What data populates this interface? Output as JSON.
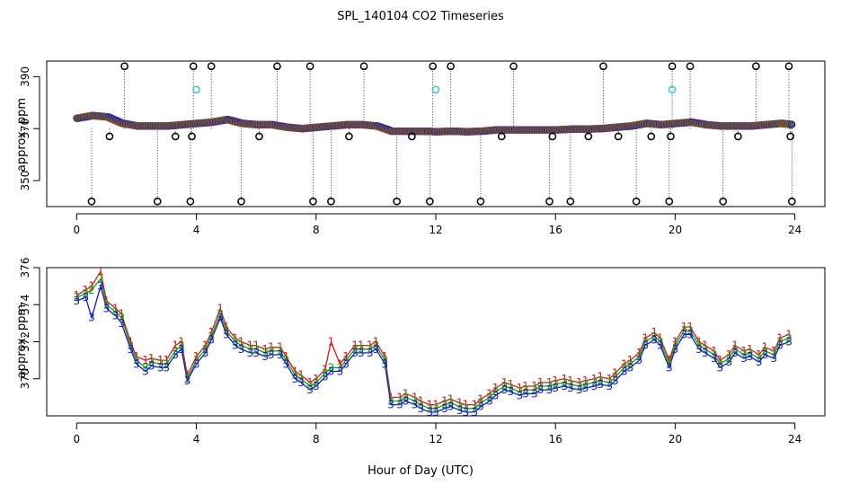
{
  "title": "SPL_140104  CO2 Timeseries",
  "xlabel": "Hour of Day (UTC)",
  "colors": {
    "black": "#000000",
    "red": "#e8141c",
    "green": "#00b400",
    "blue": "#1414e6",
    "cyan": "#22cccc",
    "magenta": "#c21ec2"
  },
  "chart_data": [
    {
      "type": "scatter",
      "name": "top-panel",
      "ylabel": "approx. ppm",
      "xlim": [
        -1,
        25
      ],
      "ylim": [
        340,
        396
      ],
      "x_ticks": [
        0,
        4,
        8,
        12,
        16,
        20,
        24
      ],
      "y_ticks": [
        350,
        370,
        390
      ],
      "main_series": {
        "x": [
          0.0,
          0.5,
          1.0,
          1.5,
          2.0,
          2.5,
          3.0,
          3.5,
          4.0,
          4.5,
          5.0,
          5.5,
          6.0,
          6.5,
          7.0,
          7.5,
          8.0,
          8.5,
          9.0,
          9.5,
          10.0,
          10.5,
          11.0,
          11.5,
          12.0,
          12.5,
          13.0,
          13.5,
          14.0,
          14.5,
          15.0,
          15.5,
          16.0,
          16.5,
          17.0,
          17.5,
          18.0,
          18.5,
          19.0,
          19.5,
          20.0,
          20.5,
          21.0,
          21.5,
          22.0,
          22.5,
          23.0,
          23.5,
          23.9
        ],
        "y": [
          374.0,
          375.0,
          374.5,
          372.0,
          371.0,
          371.0,
          371.0,
          371.5,
          372.0,
          372.5,
          373.5,
          372.0,
          371.5,
          371.5,
          370.5,
          370.0,
          370.5,
          371.0,
          371.5,
          371.5,
          371.0,
          369.0,
          369.0,
          369.0,
          368.8,
          369.0,
          368.8,
          369.0,
          369.5,
          369.5,
          369.5,
          369.5,
          369.5,
          369.8,
          369.8,
          370.0,
          370.5,
          371.0,
          372.0,
          371.5,
          372.0,
          372.5,
          371.5,
          371.0,
          371.0,
          371.0,
          371.5,
          372.0,
          371.5
        ]
      },
      "flagged_points": {
        "x": [
          0.5,
          1.1,
          1.6,
          2.7,
          3.3,
          3.8,
          3.85,
          3.9,
          4.5,
          5.5,
          6.1,
          6.7,
          7.8,
          7.9,
          8.5,
          9.1,
          9.6,
          10.7,
          11.2,
          11.8,
          11.9,
          12.5,
          13.5,
          14.2,
          14.6,
          15.8,
          15.9,
          16.5,
          17.1,
          17.6,
          18.1,
          18.7,
          19.2,
          19.8,
          19.85,
          19.9,
          20.5,
          21.6,
          22.1,
          22.7,
          23.8,
          23.85,
          23.9
        ],
        "y": [
          342,
          367,
          394,
          342,
          367,
          342,
          367,
          394,
          394,
          342,
          367,
          394,
          394,
          342,
          342,
          367,
          394,
          342,
          367,
          342,
          394,
          394,
          342,
          367,
          394,
          342,
          367,
          342,
          367,
          394,
          367,
          342,
          367,
          342,
          367,
          394,
          394,
          342,
          367,
          394,
          394,
          367,
          342
        ]
      },
      "cyan_points": {
        "x": [
          4.0,
          12.0,
          19.9
        ],
        "y": [
          385,
          385,
          385
        ]
      }
    },
    {
      "type": "line",
      "name": "bottom-panel",
      "ylabel": "approx. ppm",
      "xlim": [
        -1,
        25
      ],
      "ylim": [
        368,
        376
      ],
      "x_ticks": [
        0,
        4,
        8,
        12,
        16,
        20,
        24
      ],
      "y_ticks": [
        370,
        372,
        374,
        376
      ],
      "x": [
        0.0,
        0.3,
        0.5,
        0.8,
        1.0,
        1.3,
        1.5,
        1.8,
        2.0,
        2.3,
        2.5,
        2.8,
        3.0,
        3.3,
        3.5,
        3.7,
        4.0,
        4.3,
        4.5,
        4.8,
        5.0,
        5.3,
        5.5,
        5.8,
        6.0,
        6.3,
        6.5,
        6.8,
        7.0,
        7.3,
        7.5,
        7.8,
        8.0,
        8.3,
        8.5,
        8.8,
        9.0,
        9.3,
        9.5,
        9.8,
        10.0,
        10.3,
        10.5,
        10.8,
        11.0,
        11.3,
        11.5,
        11.8,
        12.0,
        12.3,
        12.5,
        12.8,
        13.0,
        13.3,
        13.5,
        13.8,
        14.0,
        14.3,
        14.5,
        14.8,
        15.0,
        15.3,
        15.5,
        15.8,
        16.0,
        16.3,
        16.5,
        16.8,
        17.0,
        17.3,
        17.5,
        17.8,
        18.0,
        18.3,
        18.5,
        18.8,
        19.0,
        19.3,
        19.5,
        19.8,
        20.0,
        20.3,
        20.5,
        20.8,
        21.0,
        21.3,
        21.5,
        21.8,
        22.0,
        22.3,
        22.5,
        22.8,
        23.0,
        23.3,
        23.5,
        23.8
      ],
      "series": [
        {
          "label": "1",
          "color": "red",
          "y": [
            374.5,
            374.8,
            375.0,
            375.8,
            374.2,
            373.8,
            373.5,
            372.0,
            371.2,
            371.0,
            371.1,
            371.0,
            371.0,
            371.8,
            372.0,
            370.2,
            371.2,
            371.8,
            372.5,
            373.8,
            372.8,
            372.2,
            372.0,
            371.8,
            371.8,
            371.6,
            371.7,
            371.7,
            371.2,
            370.4,
            370.2,
            369.8,
            370.0,
            370.5,
            372.0,
            370.8,
            371.2,
            371.8,
            371.8,
            371.8,
            372.0,
            371.2,
            369.0,
            369.0,
            369.2,
            369.0,
            368.8,
            368.6,
            368.6,
            368.8,
            368.9,
            368.7,
            368.6,
            368.6,
            368.9,
            369.2,
            369.5,
            369.8,
            369.7,
            369.5,
            369.6,
            369.6,
            369.8,
            369.8,
            369.9,
            370.0,
            369.9,
            369.8,
            369.9,
            370.0,
            370.1,
            370.0,
            370.3,
            370.8,
            371.0,
            371.4,
            372.2,
            372.5,
            372.2,
            371.0,
            372.0,
            372.8,
            372.8,
            372.0,
            371.8,
            371.5,
            371.0,
            371.3,
            371.8,
            371.5,
            371.6,
            371.3,
            371.7,
            371.5,
            372.2,
            372.4
          ]
        },
        {
          "label": "2",
          "color": "green",
          "y": [
            374.4,
            374.6,
            374.8,
            375.4,
            374.0,
            373.6,
            373.3,
            371.8,
            371.0,
            370.6,
            370.9,
            370.8,
            370.8,
            371.5,
            371.8,
            370.0,
            371.0,
            371.6,
            372.3,
            373.5,
            372.6,
            372.0,
            371.8,
            371.6,
            371.6,
            371.4,
            371.5,
            371.5,
            371.0,
            370.2,
            370.0,
            369.6,
            369.8,
            370.3,
            370.6,
            370.6,
            371.0,
            371.6,
            371.6,
            371.6,
            371.8,
            371.0,
            368.8,
            368.8,
            369.0,
            368.8,
            368.6,
            368.4,
            368.4,
            368.6,
            368.7,
            368.5,
            368.4,
            368.4,
            368.7,
            369.0,
            369.3,
            369.6,
            369.5,
            369.3,
            369.4,
            369.4,
            369.6,
            369.6,
            369.7,
            369.8,
            369.7,
            369.6,
            369.7,
            369.8,
            369.9,
            369.8,
            370.1,
            370.6,
            370.8,
            371.2,
            372.0,
            372.3,
            372.0,
            370.8,
            371.8,
            372.6,
            372.6,
            371.8,
            371.6,
            371.3,
            370.8,
            371.1,
            371.6,
            371.3,
            371.4,
            371.1,
            371.5,
            371.3,
            372.0,
            372.2
          ]
        },
        {
          "label": "3",
          "color": "blue",
          "y": [
            374.2,
            374.4,
            373.3,
            375.0,
            373.8,
            373.4,
            373.0,
            371.6,
            370.8,
            370.4,
            370.7,
            370.6,
            370.6,
            371.3,
            371.6,
            369.9,
            370.8,
            371.4,
            372.1,
            373.3,
            372.4,
            371.8,
            371.6,
            371.4,
            371.4,
            371.2,
            371.3,
            371.3,
            370.8,
            370.0,
            369.8,
            369.4,
            369.6,
            370.1,
            370.4,
            370.4,
            370.8,
            371.4,
            371.4,
            371.4,
            371.6,
            370.8,
            368.6,
            368.6,
            368.8,
            368.6,
            368.4,
            368.2,
            368.2,
            368.4,
            368.5,
            368.3,
            368.2,
            368.2,
            368.5,
            368.8,
            369.1,
            369.4,
            369.3,
            369.1,
            369.2,
            369.2,
            369.4,
            369.4,
            369.5,
            369.6,
            369.5,
            369.4,
            369.5,
            369.6,
            369.7,
            369.6,
            369.9,
            370.4,
            370.6,
            371.0,
            371.8,
            372.1,
            371.8,
            370.6,
            371.6,
            372.4,
            372.4,
            371.6,
            371.4,
            371.1,
            370.6,
            370.9,
            371.4,
            371.1,
            371.2,
            370.9,
            371.3,
            371.1,
            371.8,
            372.0
          ]
        }
      ]
    }
  ]
}
